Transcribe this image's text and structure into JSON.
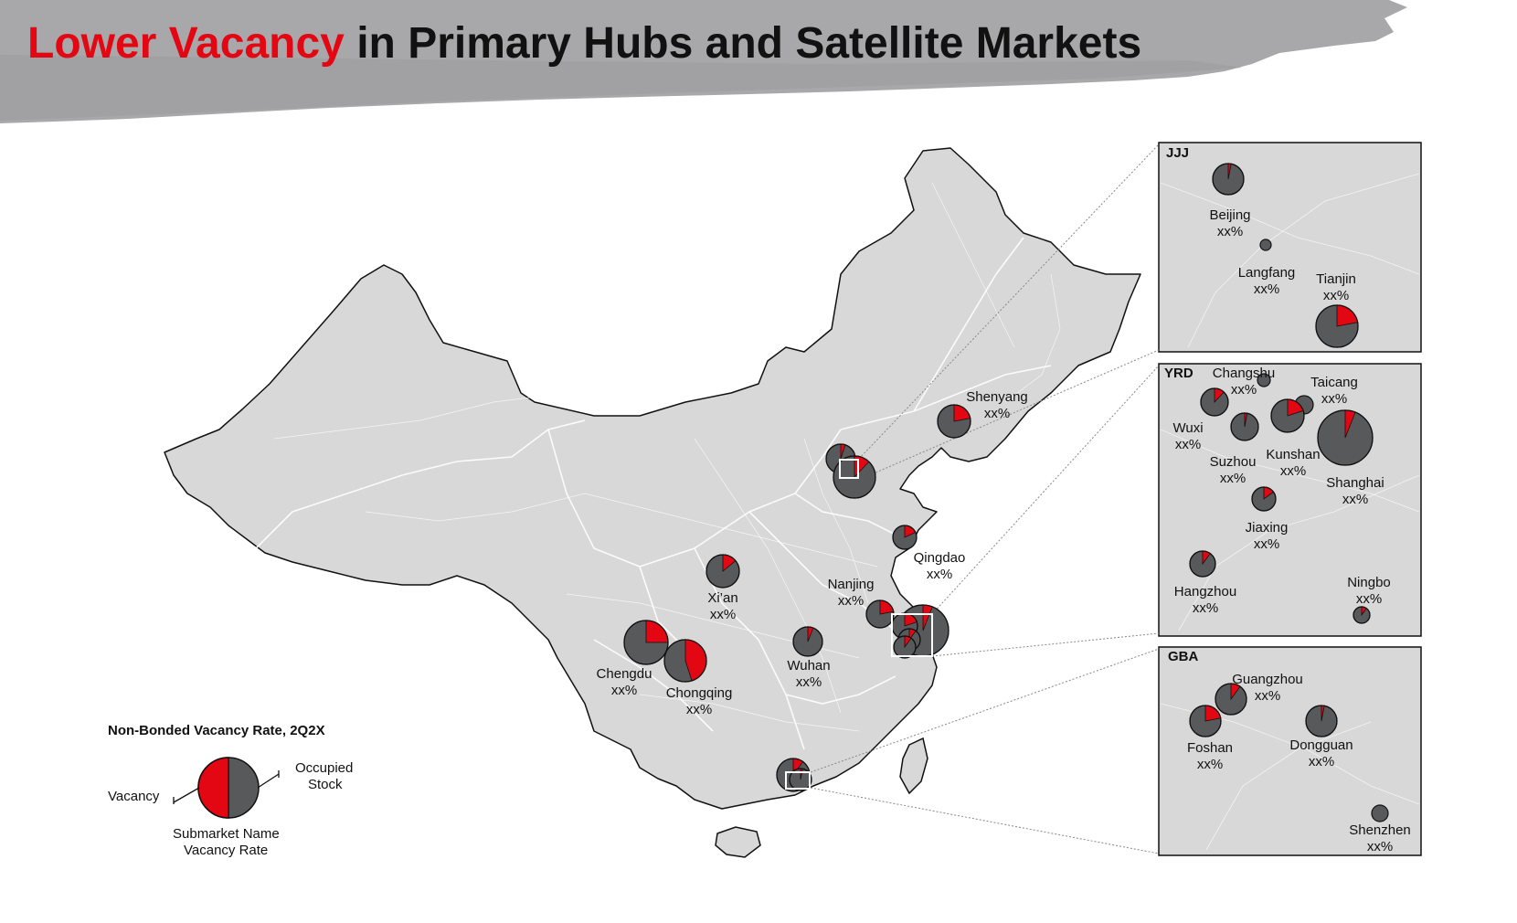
{
  "title": {
    "highlight": "Lower Vacancy",
    "rest": " in Primary Hubs and Satellite Markets"
  },
  "colors": {
    "vacancy": "#e30613",
    "occupied": "#58595b",
    "map_land": "#d9d9d9",
    "banner": "#a6a6a8",
    "accent": "#e30613"
  },
  "legend": {
    "title": "Non-Bonded Vacancy Rate, 2Q2X",
    "vacancy_label": "Vacancy",
    "occupied_label_1": "Occupied",
    "occupied_label_2": "Stock",
    "name_label": "Submarket Name",
    "rate_label": "Vacancy Rate",
    "example_vacancy": 0.5
  },
  "main_markets": [
    {
      "name": "Shenyang",
      "value": "xx%",
      "vacancy": 0.22
    },
    {
      "name": "Qingdao",
      "value": "xx%",
      "vacancy": 0.18
    },
    {
      "name": "Xi’an",
      "value": "xx%",
      "vacancy": 0.14
    },
    {
      "name": "Nanjing",
      "value": "xx%",
      "vacancy": 0.22
    },
    {
      "name": "Chengdu",
      "value": "xx%",
      "vacancy": 0.25
    },
    {
      "name": "Chongqing",
      "value": "xx%",
      "vacancy": 0.45
    },
    {
      "name": "Wuhan",
      "value": "xx%",
      "vacancy": 0.06
    }
  ],
  "insets": [
    {
      "id": "JJJ",
      "label": "JJJ",
      "markets": [
        {
          "name": "Beijing",
          "value": "xx%",
          "vacancy": 0.03
        },
        {
          "name": "Langfang",
          "value": "xx%",
          "vacancy": 0.0
        },
        {
          "name": "Tianjin",
          "value": "xx%",
          "vacancy": 0.22
        }
      ]
    },
    {
      "id": "YRD",
      "label": "YRD",
      "markets": [
        {
          "name": "Changshu",
          "value": "xx%",
          "vacancy": 0.0
        },
        {
          "name": "Taicang",
          "value": "xx%",
          "vacancy": 0.0
        },
        {
          "name": "Wuxi",
          "value": "xx%",
          "vacancy": 0.12
        },
        {
          "name": "Suzhou",
          "value": "xx%",
          "vacancy": 0.03
        },
        {
          "name": "Kunshan",
          "value": "xx%",
          "vacancy": 0.2
        },
        {
          "name": "Shanghai",
          "value": "xx%",
          "vacancy": 0.06
        },
        {
          "name": "Jiaxing",
          "value": "xx%",
          "vacancy": 0.15
        },
        {
          "name": "Hangzhou",
          "value": "xx%",
          "vacancy": 0.1
        },
        {
          "name": "Ningbo",
          "value": "xx%",
          "vacancy": 0.1
        }
      ]
    },
    {
      "id": "GBA",
      "label": "GBA",
      "markets": [
        {
          "name": "Guangzhou",
          "value": "xx%",
          "vacancy": 0.1
        },
        {
          "name": "Foshan",
          "value": "xx%",
          "vacancy": 0.22
        },
        {
          "name": "Dongguan",
          "value": "xx%",
          "vacancy": 0.03
        },
        {
          "name": "Shenzhen",
          "value": "xx%",
          "vacancy": 0.0
        }
      ]
    }
  ]
}
